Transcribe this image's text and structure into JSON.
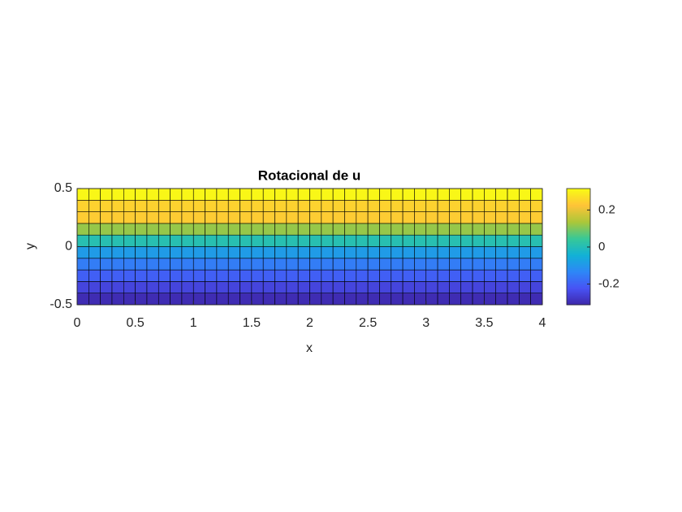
{
  "chart_data": {
    "type": "heatmap",
    "title": "Rotacional de u",
    "x_label": "x",
    "y_label": "y",
    "colormap": "parula",
    "clim": [
      -0.312,
      0.316
    ],
    "xlim": [
      0,
      4
    ],
    "ylim": [
      -0.5,
      0.5
    ],
    "xticks": [
      0,
      0.5,
      1,
      1.5,
      2,
      2.5,
      3,
      3.5,
      4
    ],
    "yticks": [
      -0.5,
      0,
      0.5
    ],
    "colorbar_ticks": [
      -0.2,
      0,
      0.2
    ],
    "x_edges": [
      0,
      0.1,
      0.2,
      0.3,
      0.4,
      0.5,
      0.6,
      0.7,
      0.8,
      0.9,
      1,
      1.1,
      1.2,
      1.3,
      1.4,
      1.5,
      1.6,
      1.7,
      1.8,
      1.9,
      2,
      2.1,
      2.2,
      2.3,
      2.4,
      2.5,
      2.6,
      2.7,
      2.8,
      2.9,
      3,
      3.1,
      3.2,
      3.3,
      3.4,
      3.5,
      3.6,
      3.7,
      3.8,
      3.9,
      4
    ],
    "y_edges": [
      -0.5,
      -0.4,
      -0.3,
      -0.2,
      -0.1,
      0,
      0.1,
      0.2,
      0.3,
      0.4,
      0.5
    ],
    "values": [
      [
        -0.3,
        -0.3,
        -0.3,
        -0.3,
        -0.3,
        -0.3,
        -0.3,
        -0.3,
        -0.3,
        -0.3,
        -0.3,
        -0.3,
        -0.3,
        -0.3,
        -0.3,
        -0.3,
        -0.3,
        -0.3,
        -0.3,
        -0.3,
        -0.3,
        -0.3,
        -0.3,
        -0.3,
        -0.3,
        -0.3,
        -0.3,
        -0.3,
        -0.3,
        -0.3,
        -0.3,
        -0.3,
        -0.3,
        -0.3,
        -0.3,
        -0.3,
        -0.3,
        -0.3,
        -0.3,
        -0.3
      ],
      [
        -0.25,
        -0.25,
        -0.25,
        -0.25,
        -0.25,
        -0.25,
        -0.25,
        -0.25,
        -0.25,
        -0.25,
        -0.25,
        -0.25,
        -0.25,
        -0.25,
        -0.25,
        -0.25,
        -0.25,
        -0.25,
        -0.25,
        -0.25,
        -0.25,
        -0.25,
        -0.25,
        -0.25,
        -0.25,
        -0.25,
        -0.25,
        -0.25,
        -0.25,
        -0.25,
        -0.25,
        -0.25,
        -0.25,
        -0.25,
        -0.25,
        -0.25,
        -0.25,
        -0.25,
        -0.25,
        -0.25
      ],
      [
        -0.2,
        -0.2,
        -0.2,
        -0.2,
        -0.2,
        -0.2,
        -0.2,
        -0.2,
        -0.2,
        -0.2,
        -0.2,
        -0.2,
        -0.2,
        -0.2,
        -0.2,
        -0.2,
        -0.2,
        -0.2,
        -0.2,
        -0.2,
        -0.2,
        -0.2,
        -0.2,
        -0.2,
        -0.2,
        -0.2,
        -0.2,
        -0.2,
        -0.2,
        -0.2,
        -0.2,
        -0.2,
        -0.2,
        -0.2,
        -0.2,
        -0.2,
        -0.2,
        -0.2,
        -0.2,
        -0.2
      ],
      [
        -0.15,
        -0.15,
        -0.15,
        -0.15,
        -0.15,
        -0.15,
        -0.15,
        -0.15,
        -0.15,
        -0.15,
        -0.15,
        -0.15,
        -0.15,
        -0.15,
        -0.15,
        -0.15,
        -0.15,
        -0.15,
        -0.15,
        -0.15,
        -0.15,
        -0.15,
        -0.15,
        -0.15,
        -0.15,
        -0.15,
        -0.15,
        -0.15,
        -0.15,
        -0.15,
        -0.15,
        -0.15,
        -0.15,
        -0.15,
        -0.15,
        -0.15,
        -0.15,
        -0.15,
        -0.15,
        -0.15
      ],
      [
        -0.09,
        -0.09,
        -0.09,
        -0.09,
        -0.09,
        -0.09,
        -0.09,
        -0.09,
        -0.09,
        -0.09,
        -0.09,
        -0.09,
        -0.09,
        -0.09,
        -0.09,
        -0.09,
        -0.09,
        -0.09,
        -0.09,
        -0.09,
        -0.09,
        -0.09,
        -0.09,
        -0.09,
        -0.09,
        -0.09,
        -0.09,
        -0.09,
        -0.09,
        -0.09,
        -0.09,
        -0.09,
        -0.09,
        -0.09,
        -0.09,
        -0.09,
        -0.09,
        -0.09,
        -0.09,
        -0.09
      ],
      [
        0.01,
        0.01,
        0.01,
        0.01,
        0.01,
        0.01,
        0.01,
        0.01,
        0.01,
        0.01,
        0.01,
        0.01,
        0.01,
        0.01,
        0.01,
        0.01,
        0.01,
        0.01,
        0.01,
        0.01,
        0.01,
        0.01,
        0.01,
        0.01,
        0.01,
        0.01,
        0.01,
        0.01,
        0.01,
        0.01,
        0.01,
        0.01,
        0.01,
        0.01,
        0.01,
        0.01,
        0.01,
        0.01,
        0.01,
        0.01
      ],
      [
        0.12,
        0.12,
        0.12,
        0.12,
        0.12,
        0.12,
        0.12,
        0.12,
        0.12,
        0.12,
        0.12,
        0.12,
        0.12,
        0.12,
        0.12,
        0.12,
        0.12,
        0.12,
        0.12,
        0.12,
        0.12,
        0.12,
        0.12,
        0.12,
        0.12,
        0.12,
        0.12,
        0.12,
        0.12,
        0.12,
        0.12,
        0.12,
        0.12,
        0.12,
        0.12,
        0.12,
        0.12,
        0.12,
        0.12,
        0.12
      ],
      [
        0.24,
        0.24,
        0.24,
        0.24,
        0.24,
        0.24,
        0.24,
        0.24,
        0.24,
        0.24,
        0.24,
        0.24,
        0.24,
        0.24,
        0.24,
        0.24,
        0.24,
        0.24,
        0.24,
        0.24,
        0.24,
        0.24,
        0.24,
        0.24,
        0.24,
        0.24,
        0.24,
        0.24,
        0.24,
        0.24,
        0.24,
        0.24,
        0.24,
        0.24,
        0.24,
        0.24,
        0.24,
        0.24,
        0.24,
        0.24
      ],
      [
        0.25,
        0.25,
        0.25,
        0.25,
        0.25,
        0.25,
        0.25,
        0.25,
        0.25,
        0.25,
        0.25,
        0.25,
        0.25,
        0.25,
        0.25,
        0.25,
        0.25,
        0.25,
        0.25,
        0.25,
        0.25,
        0.25,
        0.25,
        0.25,
        0.25,
        0.25,
        0.25,
        0.25,
        0.25,
        0.25,
        0.25,
        0.25,
        0.25,
        0.25,
        0.25,
        0.25,
        0.25,
        0.25,
        0.25,
        0.25
      ],
      [
        0.31,
        0.31,
        0.31,
        0.31,
        0.31,
        0.31,
        0.31,
        0.31,
        0.31,
        0.31,
        0.31,
        0.31,
        0.31,
        0.31,
        0.31,
        0.31,
        0.31,
        0.31,
        0.31,
        0.31,
        0.31,
        0.31,
        0.31,
        0.31,
        0.31,
        0.31,
        0.31,
        0.31,
        0.31,
        0.31,
        0.31,
        0.31,
        0.31,
        0.31,
        0.31,
        0.31,
        0.31,
        0.31,
        0.31,
        0.31
      ]
    ]
  }
}
